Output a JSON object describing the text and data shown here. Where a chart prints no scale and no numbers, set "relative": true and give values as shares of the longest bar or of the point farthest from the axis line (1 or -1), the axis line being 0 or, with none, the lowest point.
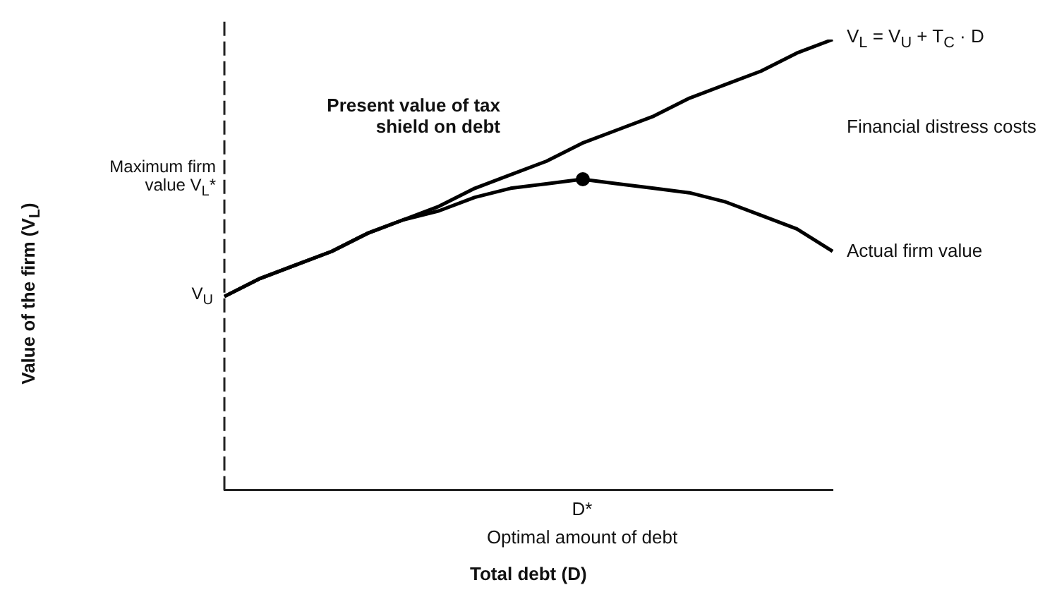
{
  "chart_data": {
    "type": "line",
    "relative": true,
    "xlabel": "Total debt (D)",
    "categories": [
      null,
      null,
      null,
      null,
      null,
      null,
      null,
      null,
      null,
      null,
      null,
      null,
      null,
      null,
      null,
      null,
      null,
      null
    ],
    "series": [
      {
        "name": "V$_{L}$ = V$_{U}$ + T$_{C}$ · D",
        "color": "#000000",
        "values": [
          0.43,
          0.47,
          0.5,
          0.53,
          0.57,
          0.6,
          0.63,
          0.67,
          0.7,
          0.73,
          0.77,
          0.8,
          0.83,
          0.87,
          0.9,
          0.93,
          0.97,
          1
        ]
      },
      {
        "name": "Actual firm value",
        "color": "#000000",
        "values": [
          0.43,
          0.47,
          0.5,
          0.53,
          0.57,
          0.6,
          0.62,
          0.65,
          0.67,
          0.68,
          0.69,
          0.68,
          0.67,
          0.66,
          0.64,
          0.61,
          0.58,
          0.53
        ]
      }
    ],
    "marker": "none",
    "legend": false,
    "grid": false,
    "annotations": [
      "Present value of tax shield on debt",
      "Financial distress costs",
      "D*",
      "Optimal amount of debt",
      "V$_{U}$",
      "Maximum firm value V$_{L}$*",
      "Value of the firm (V$_{L}$)"
    ]
  }
}
